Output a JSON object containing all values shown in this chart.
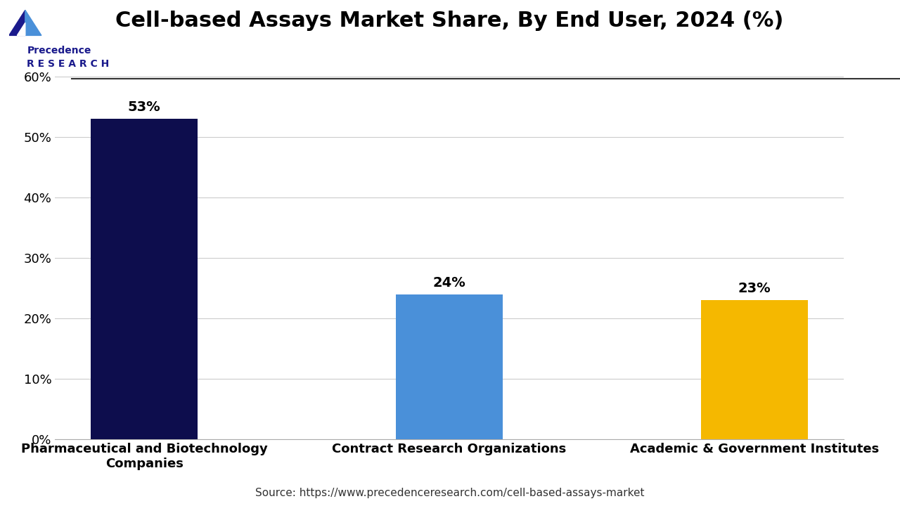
{
  "title": "Cell-based Assays Market Share, By End User, 2024 (%)",
  "categories": [
    "Pharmaceutical and Biotechnology\nCompanies",
    "Contract Research Organizations",
    "Academic & Government Institutes"
  ],
  "values": [
    53,
    24,
    23
  ],
  "bar_colors": [
    "#0d0d4d",
    "#4a90d9",
    "#f5b800"
  ],
  "value_labels": [
    "53%",
    "24%",
    "23%"
  ],
  "ylim": [
    0,
    65
  ],
  "yticks": [
    0,
    10,
    20,
    30,
    40,
    50,
    60
  ],
  "ytick_labels": [
    "0%",
    "10%",
    "20%",
    "30%",
    "40%",
    "50%",
    "60%"
  ],
  "source_text": "Source: https://www.precedenceresearch.com/cell-based-assays-market",
  "background_color": "#ffffff",
  "grid_color": "#cccccc",
  "title_fontsize": 22,
  "label_fontsize": 13,
  "tick_fontsize": 13,
  "value_fontsize": 14,
  "source_fontsize": 11
}
